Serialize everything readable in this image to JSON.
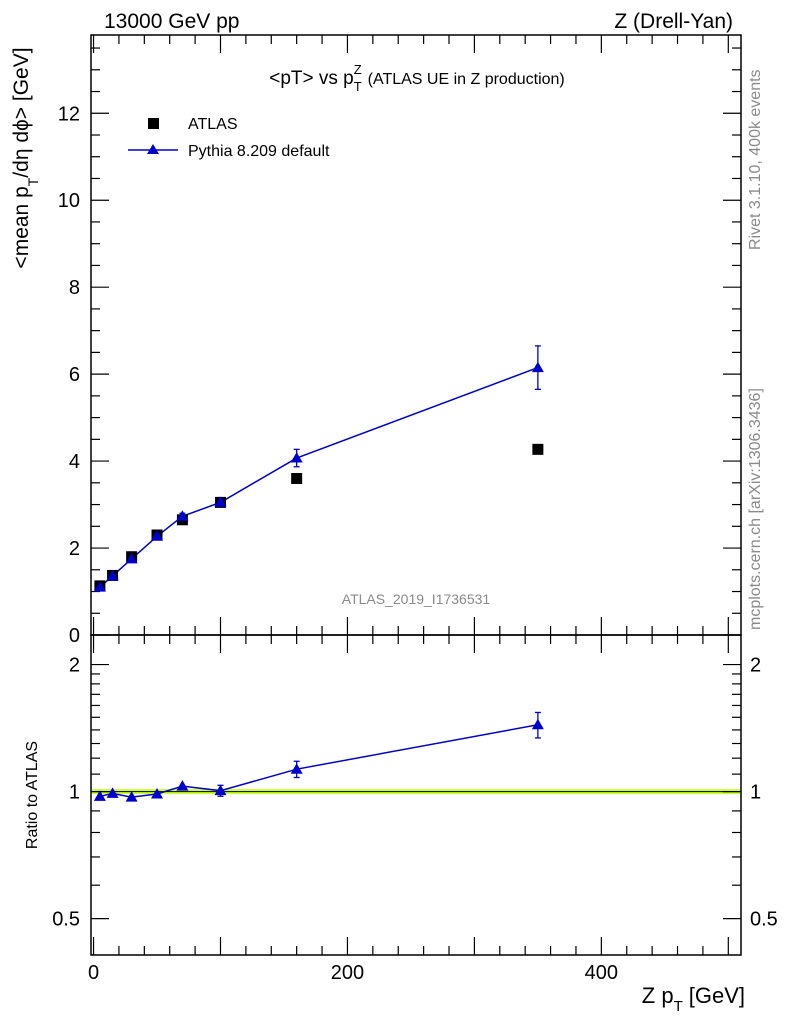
{
  "header": {
    "energy_label": "13000 GeV pp",
    "process_label": "Z (Drell-Yan)"
  },
  "chart_data": [
    {
      "type": "scatter",
      "title_main": "<pT> vs p",
      "title_sub": "T",
      "title_sup": "Z",
      "title_rest": "(ATLAS UE in Z production)",
      "ylabel_main": "<mean p",
      "ylabel_sub": "T",
      "ylabel_rest": "/dη dϕ> [GeV]",
      "xlim": [
        -2,
        510
      ],
      "ylim": [
        0,
        13.8
      ],
      "y_ticks": [
        0,
        2,
        4,
        6,
        8,
        10,
        12
      ],
      "y_tick_labels": [
        "0",
        "2",
        "4",
        "6",
        "8",
        "10",
        "12"
      ],
      "legend_position": "top-left",
      "series": [
        {
          "name": "ATLAS",
          "marker": "square",
          "color": "#000000",
          "x": [
            5,
            15,
            30,
            50,
            70,
            100,
            160,
            350
          ],
          "y": [
            1.13,
            1.37,
            1.8,
            2.3,
            2.65,
            3.05,
            3.6,
            4.27
          ]
        },
        {
          "name": "Pythia 8.209 default",
          "marker": "triangle",
          "color": "#0000cc",
          "x": [
            5,
            15,
            30,
            50,
            70,
            100,
            160,
            350
          ],
          "y": [
            1.1,
            1.36,
            1.75,
            2.27,
            2.73,
            3.05,
            4.07,
            6.15
          ],
          "yerr": [
            0.02,
            0.03,
            0.03,
            0.05,
            0.07,
            0.05,
            0.2,
            0.5
          ]
        }
      ],
      "watermark": "ATLAS_2019_I1736531"
    },
    {
      "type": "scatter",
      "ylabel": "Ratio to ATLAS",
      "xlabel_main": "Z p",
      "xlabel_sub": "T",
      "xlabel_rest": "[GeV]",
      "yscale": "log",
      "xlim": [
        -2,
        510
      ],
      "ylim": [
        0.41,
        2.35
      ],
      "y_ticks": [
        0.5,
        1,
        2
      ],
      "y_tick_labels": [
        "0.5",
        "1",
        "2"
      ],
      "x_ticks": [
        0,
        200,
        400
      ],
      "x_tick_labels": [
        "0",
        "200",
        "400"
      ],
      "reference_band": {
        "value": 1,
        "color": "#ccff33"
      },
      "series": [
        {
          "name": "Pythia 8.209 default / ATLAS",
          "marker": "triangle",
          "color": "#0000cc",
          "x": [
            5,
            15,
            30,
            50,
            70,
            100,
            160,
            350
          ],
          "y": [
            0.974,
            0.99,
            0.97,
            0.987,
            1.03,
            1.005,
            1.13,
            1.44
          ],
          "yerr": [
            0.015,
            0.018,
            0.015,
            0.02,
            0.022,
            0.03,
            0.05,
            0.1
          ]
        }
      ]
    }
  ],
  "side_labels": {
    "rivet": "Rivet 3.1.10,  400k events",
    "mcplots": "mcplots.cern.ch [arXiv:1306.3436]"
  }
}
